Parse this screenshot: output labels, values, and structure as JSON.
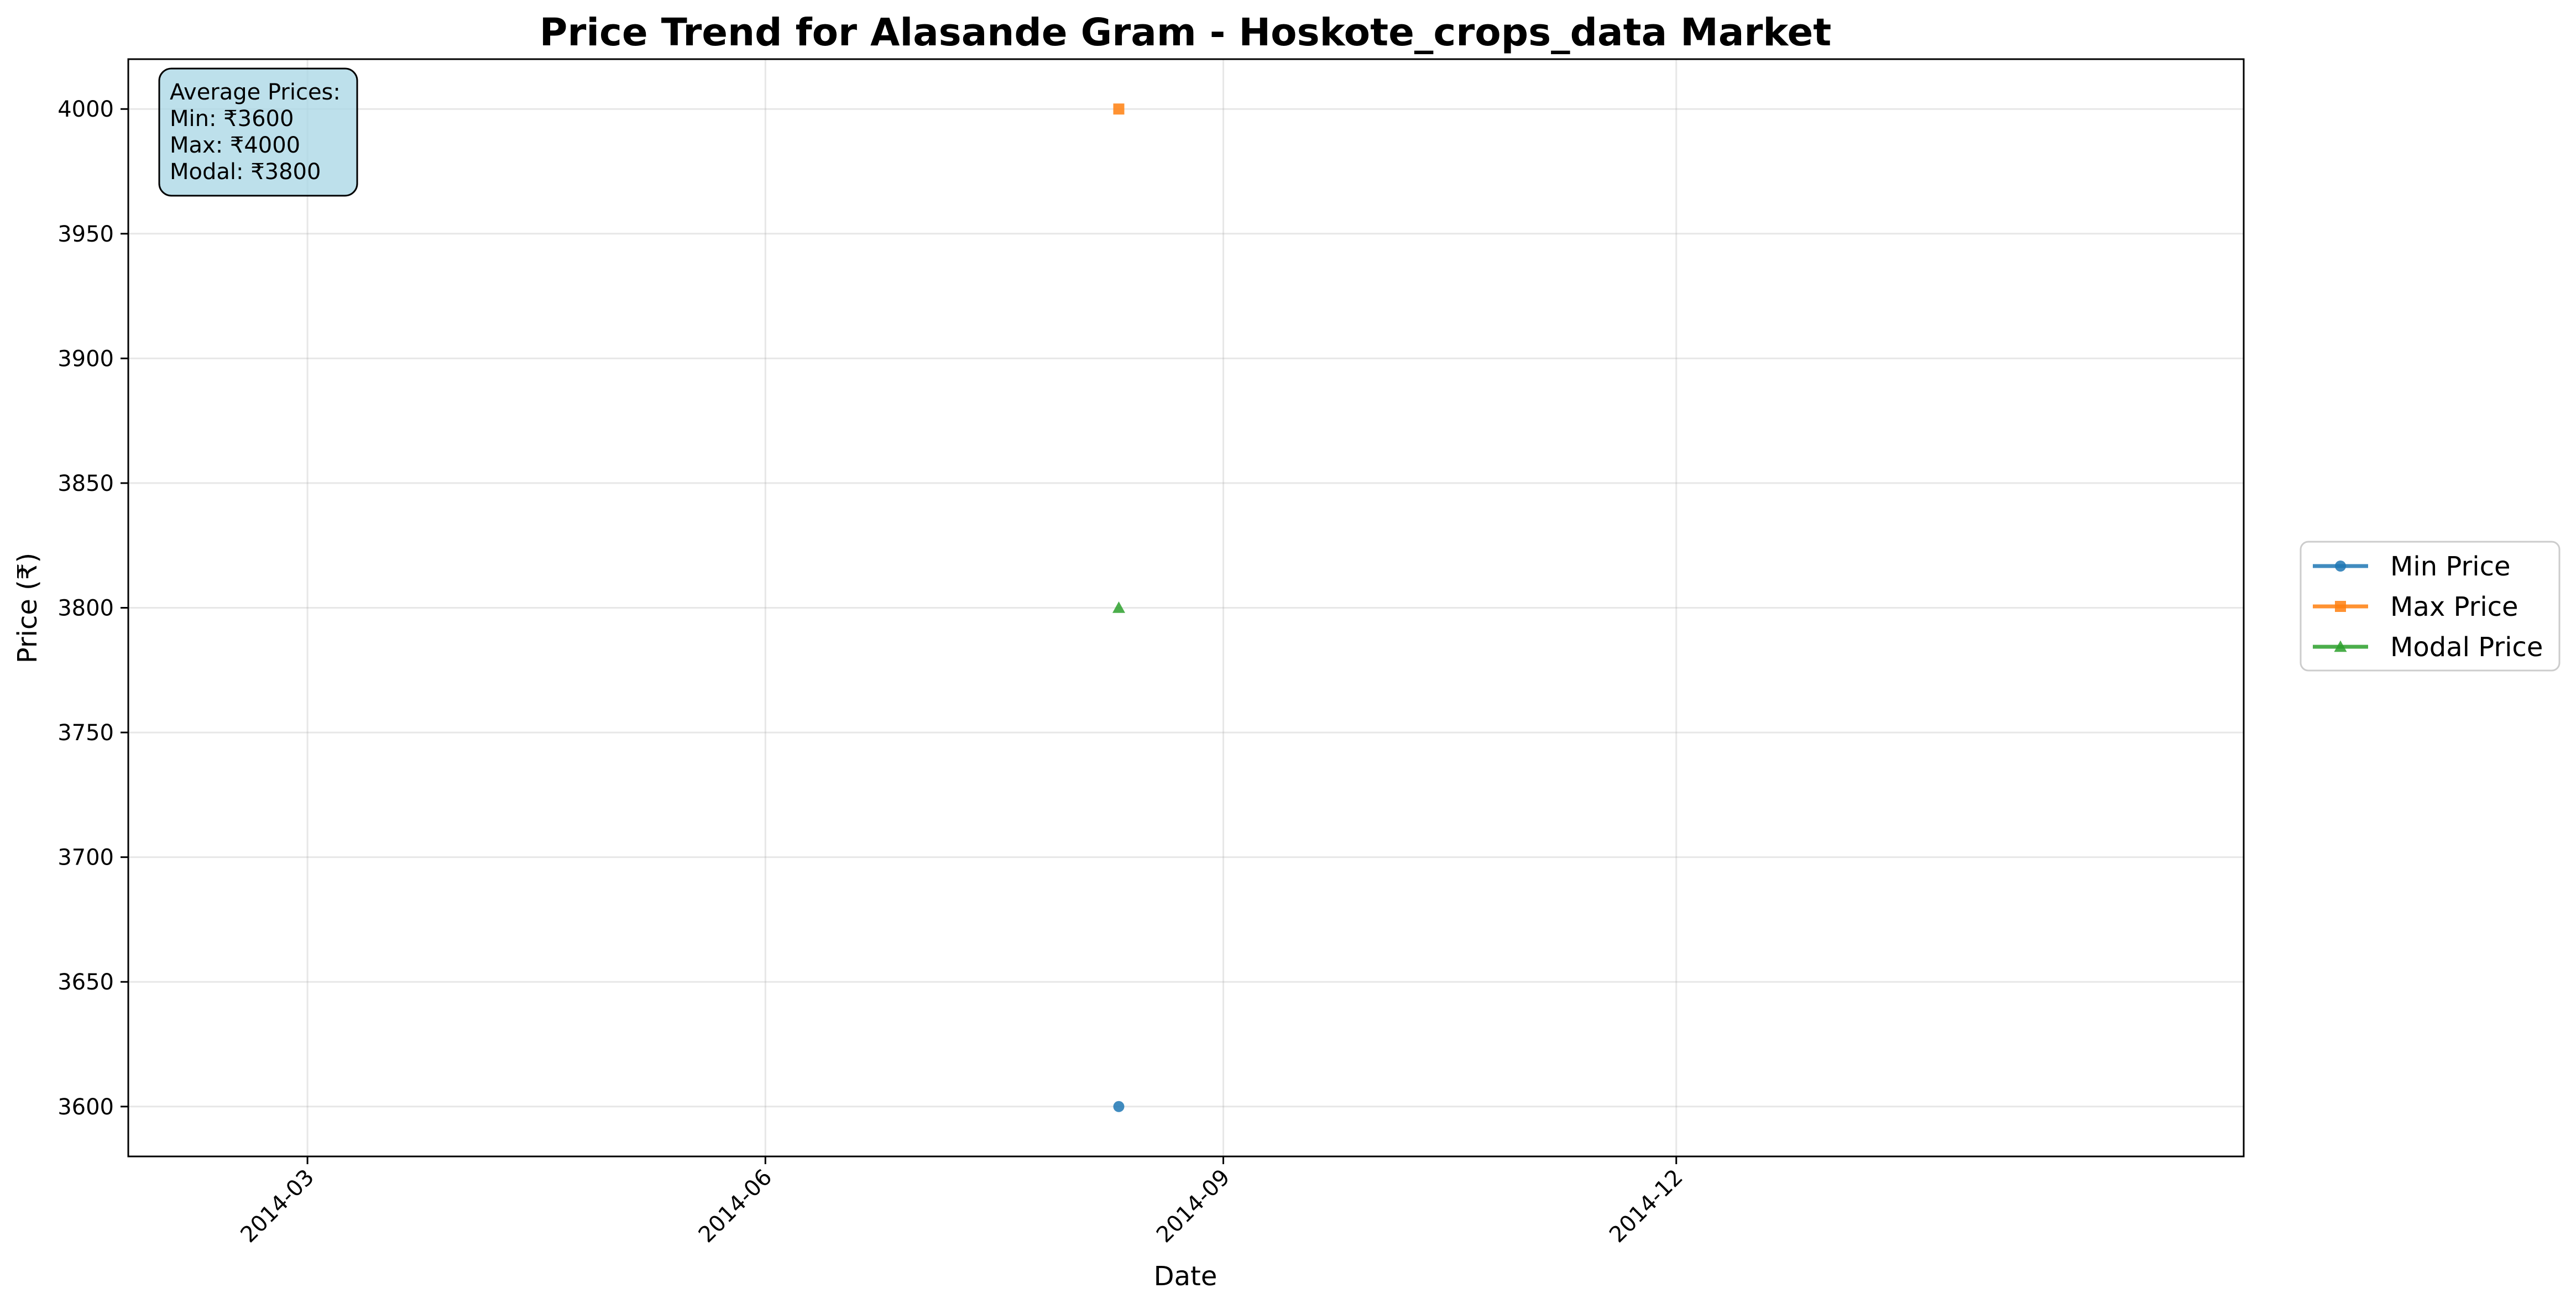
{
  "chart_data": {
    "type": "line",
    "title": "Price Trend for Alasande Gram - Hoskote_crops_data Market",
    "xlabel": "Date",
    "ylabel": "Price (₹)",
    "x_ticks": [
      "2014-03",
      "2014-06",
      "2014-09",
      "2014-12"
    ],
    "x_range": [
      "2014-01-24",
      "2015-03-25"
    ],
    "ylim": [
      3580,
      4020
    ],
    "y_ticks": [
      3600,
      3650,
      3700,
      3750,
      3800,
      3850,
      3900,
      3950,
      4000
    ],
    "grid": true,
    "legend_position": "center-right-outside",
    "x": [
      "2014-08-11"
    ],
    "series": [
      {
        "name": "Min Price",
        "color": "#1f77b4",
        "marker": "circle",
        "values": [
          3600
        ]
      },
      {
        "name": "Max Price",
        "color": "#ff7f0e",
        "marker": "square",
        "values": [
          4000
        ]
      },
      {
        "name": "Modal Price",
        "color": "#2ca02c",
        "marker": "triangle",
        "values": [
          3800
        ]
      }
    ],
    "annotation": {
      "header": "Average Prices:",
      "lines": [
        "Min: ₹3600",
        "Max: ₹4000",
        "Modal: ₹3800"
      ],
      "background": "#add8e6"
    }
  }
}
